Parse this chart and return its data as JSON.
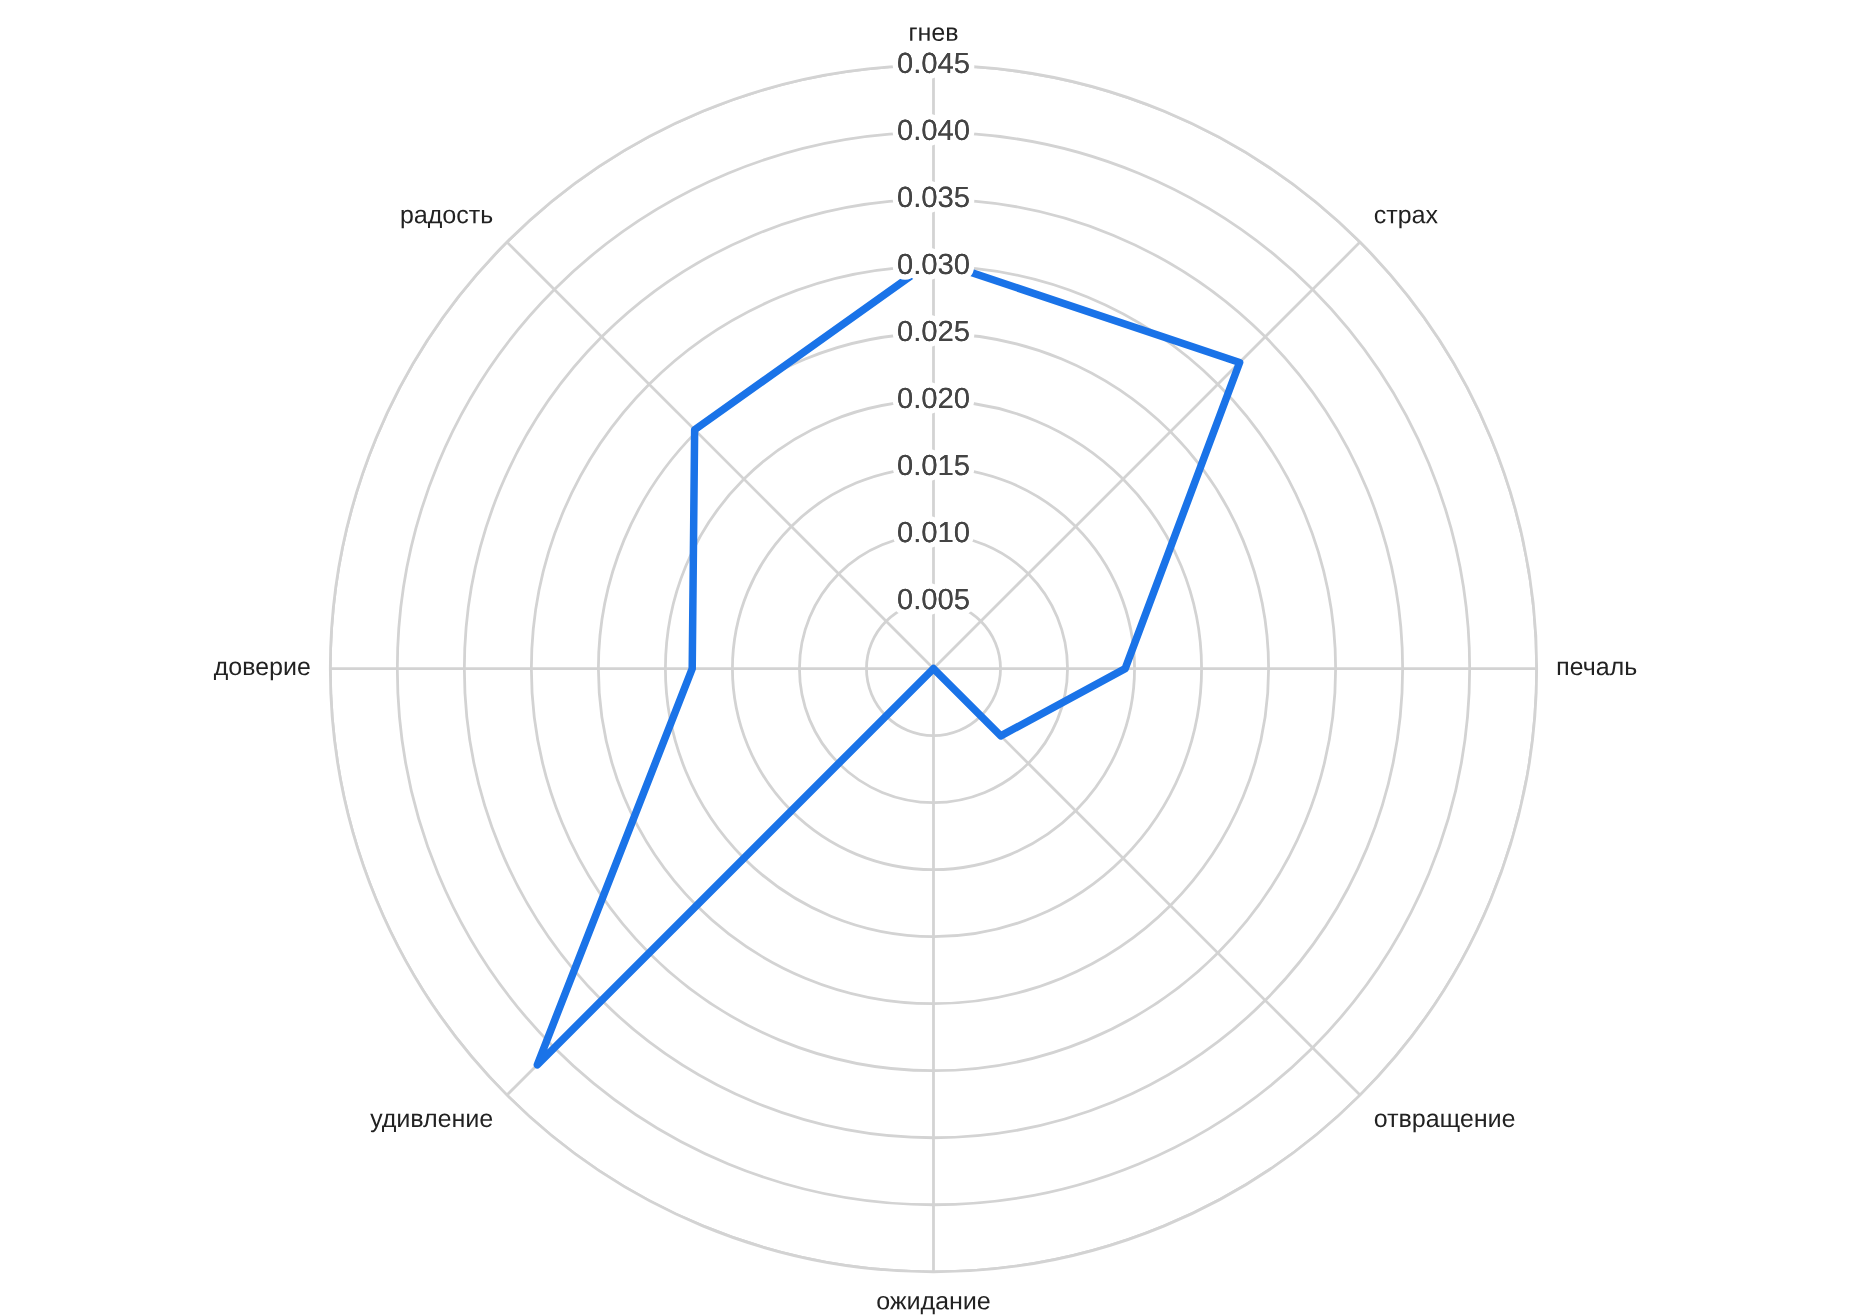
{
  "chart_data": {
    "type": "radar",
    "categories": [
      "гнев",
      "страх",
      "печаль",
      "отвращение",
      "ожидание",
      "удивление",
      "доверие",
      "радость"
    ],
    "series": [
      {
        "color": "#1a73e8",
        "values": [
          0.0305,
          0.0323,
          0.0143,
          0.0071,
          0,
          0.0418,
          0.018,
          0.0252
        ]
      }
    ],
    "ylim": [
      0,
      0.045
    ],
    "yticks": [
      0.005,
      {
        "value": 0.01,
        "label": "0.010"
      },
      0.015,
      {
        "value": 0.02,
        "label": "0.020"
      },
      0.025,
      {
        "value": 0.03,
        "label": "0.030"
      },
      0.035,
      {
        "value": 0.04,
        "label": "0.040"
      },
      0.045
    ],
    "grid": true
  }
}
